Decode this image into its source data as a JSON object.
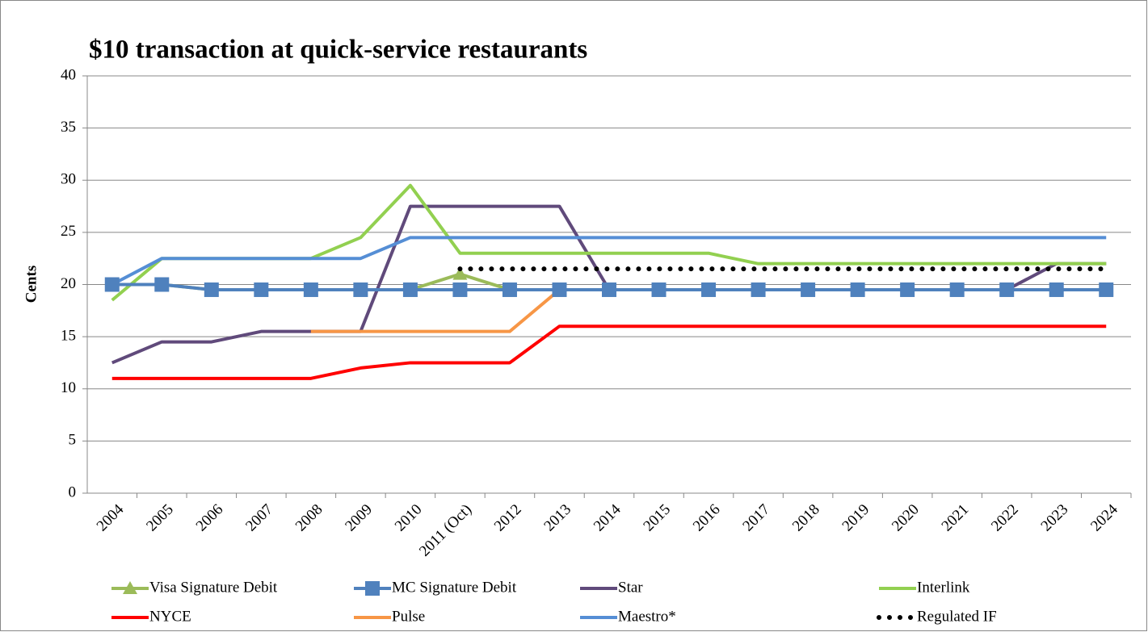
{
  "chart_data": {
    "type": "line",
    "title": "$10 transaction at quick-service restaurants",
    "y_label": "Cents",
    "categories": [
      "2004",
      "2005",
      "2006",
      "2007",
      "2008",
      "2009",
      "2010",
      "2011 (Oct)",
      "2012",
      "2013",
      "2014",
      "2015",
      "2016",
      "2017",
      "2018",
      "2019",
      "2020",
      "2021",
      "2022",
      "2023",
      "2024"
    ],
    "ylim": [
      0,
      40
    ],
    "yticks": [
      0,
      5,
      10,
      15,
      20,
      25,
      30,
      35,
      40
    ],
    "grid": true,
    "legend": "bottom",
    "series": [
      {
        "name": "Visa Signature Debit",
        "color": "#9bbb59",
        "marker": "triangle",
        "values": [
          20,
          20,
          19.5,
          19.5,
          19.5,
          19.5,
          19.5,
          21,
          19.5,
          19.5,
          19.5,
          19.5,
          19.5,
          19.5,
          19.5,
          19.5,
          19.5,
          19.5,
          19.5,
          19.5,
          19.5
        ]
      },
      {
        "name": "MC Signature Debit",
        "color": "#4f81bd",
        "marker": "square",
        "values": [
          20,
          20,
          19.5,
          19.5,
          19.5,
          19.5,
          19.5,
          19.5,
          19.5,
          19.5,
          19.5,
          19.5,
          19.5,
          19.5,
          19.5,
          19.5,
          19.5,
          19.5,
          19.5,
          19.5,
          19.5
        ]
      },
      {
        "name": "Star",
        "color": "#604a7b",
        "values": [
          12.5,
          14.5,
          14.5,
          15.5,
          15.5,
          15.5,
          27.5,
          27.5,
          27.5,
          27.5,
          19.5,
          19.5,
          19.5,
          19.5,
          19.5,
          19.5,
          19.5,
          19.5,
          19.5,
          22,
          22
        ]
      },
      {
        "name": "Interlink",
        "color": "#92d050",
        "values": [
          18.5,
          22.5,
          22.5,
          22.5,
          22.5,
          24.5,
          29.5,
          23,
          23,
          23,
          23,
          23,
          23,
          22,
          22,
          22,
          22,
          22,
          22,
          22,
          22
        ]
      },
      {
        "name": "NYCE",
        "color": "#ff0000",
        "values": [
          11,
          11,
          11,
          11,
          11,
          12,
          12.5,
          12.5,
          12.5,
          16,
          16,
          16,
          16,
          16,
          16,
          16,
          16,
          16,
          16,
          16,
          16
        ]
      },
      {
        "name": "Pulse",
        "color": "#f79646",
        "values": [
          null,
          null,
          null,
          null,
          15.5,
          15.5,
          15.5,
          15.5,
          15.5,
          19.5,
          19.5,
          19.5,
          19.5,
          19.5,
          19.5,
          19.5,
          19.5,
          19.5,
          19.5,
          19.5,
          19.5
        ]
      },
      {
        "name": "Maestro*",
        "color": "#558ed5",
        "values": [
          20,
          22.5,
          22.5,
          22.5,
          22.5,
          22.5,
          24.5,
          24.5,
          24.5,
          24.5,
          24.5,
          24.5,
          24.5,
          24.5,
          24.5,
          24.5,
          24.5,
          24.5,
          24.5,
          24.5,
          24.5
        ]
      },
      {
        "name": "Regulated IF",
        "color": "#000000",
        "dotted": true,
        "values": [
          null,
          null,
          null,
          null,
          null,
          null,
          null,
          21.5,
          21.5,
          21.5,
          21.5,
          21.5,
          21.5,
          21.5,
          21.5,
          21.5,
          21.5,
          21.5,
          21.5,
          21.5,
          21.5
        ]
      }
    ]
  }
}
